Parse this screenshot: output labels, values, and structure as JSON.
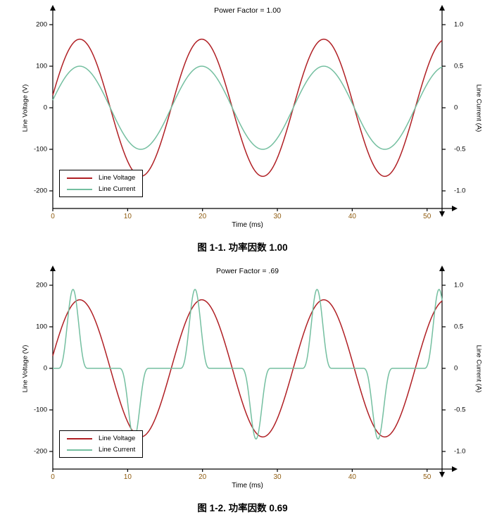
{
  "colors": {
    "axis": "#000000",
    "x_tick_labels": "#8f5c10",
    "voltage_red": "#b01f24",
    "current_green": "#74bfa0"
  },
  "chart_data": [
    {
      "type": "line",
      "title": "Power Factor = 1.00",
      "caption": "图 1-1. 功率因数 1.00",
      "xlabel": "Time (ms)",
      "ylabel_left": "Line Voltage (V)",
      "ylabel_right": "Line Current (A)",
      "x_range": [
        0,
        52
      ],
      "x_ticks": [
        0,
        10,
        20,
        30,
        40,
        50
      ],
      "left_range": [
        -200,
        200
      ],
      "left_ticks": [
        200,
        100,
        0,
        -100,
        -200
      ],
      "right_range": [
        -1.0,
        1.0
      ],
      "right_ticks": [
        "1.0",
        "0.5",
        "0",
        "-0.5",
        "-1.0"
      ],
      "legend": [
        {
          "label": "Line Voltage",
          "color": "#b01f24"
        },
        {
          "label": "Line Current",
          "color": "#74bfa0"
        }
      ],
      "series": [
        {
          "name": "Line Voltage",
          "axis": "left",
          "color": "#b01f24",
          "type": "sine",
          "amplitude": 165,
          "period_ms": 16.3,
          "t_peak_ms": 3.6
        },
        {
          "name": "Line Current",
          "axis": "right",
          "color": "#74bfa0",
          "type": "sine",
          "amplitude": 0.5,
          "period_ms": 16.3,
          "t_peak_ms": 3.6
        }
      ]
    },
    {
      "type": "line",
      "title": "Power Factor = .69",
      "caption": "图 1-2. 功率因数 0.69",
      "xlabel": "Time (ms)",
      "ylabel_left": "Line Voltage (V)",
      "ylabel_right": "Line Current (A)",
      "x_range": [
        0,
        52
      ],
      "x_ticks": [
        0,
        10,
        20,
        30,
        40,
        50
      ],
      "left_range": [
        -200,
        200
      ],
      "left_ticks": [
        200,
        100,
        0,
        -100,
        -200
      ],
      "right_range": [
        -1.0,
        1.0
      ],
      "right_ticks": [
        "1.0",
        "0.5",
        "0",
        "-0.5",
        "-1.0"
      ],
      "legend": [
        {
          "label": "Line Voltage",
          "color": "#b01f24"
        },
        {
          "label": "Line Current",
          "color": "#74bfa0"
        }
      ],
      "series": [
        {
          "name": "Line Voltage",
          "axis": "left",
          "color": "#b01f24",
          "type": "sine",
          "amplitude": 165,
          "period_ms": 16.3,
          "t_peak_ms": 3.6
        },
        {
          "name": "Line Current",
          "axis": "right",
          "color": "#74bfa0",
          "type": "pulse_train",
          "period_ms": 16.3,
          "pulses": [
            {
              "center_ms": 2.7,
              "amplitude": 0.95,
              "width_ms": 4.0,
              "sharpness": 3
            },
            {
              "center_ms": 10.85,
              "amplitude": -0.85,
              "width_ms": 4.0,
              "sharpness": 3
            }
          ]
        }
      ]
    }
  ]
}
